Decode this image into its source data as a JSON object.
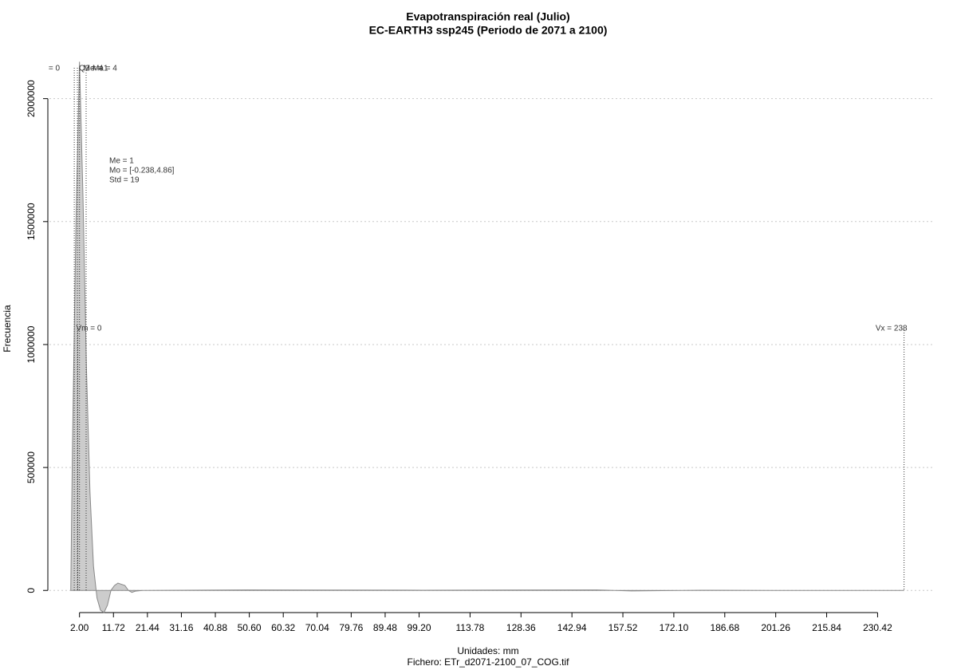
{
  "chart_data": {
    "type": "area",
    "title": "Evapotranspiración real (Julio)",
    "subtitle": "EC-EARTH3 ssp245 (Periodo de 2071 a 2100)",
    "x_label": "Unidades: mm",
    "caption": "Fichero: ETr_d2071-2100_07_COG.tif",
    "y_label": "Frecuencia",
    "x": [
      -0.5,
      0,
      1,
      2,
      3,
      4,
      5,
      6,
      7,
      8,
      9,
      10,
      11,
      12,
      13,
      15,
      16,
      17,
      18,
      20,
      50,
      100,
      150,
      160,
      180,
      200,
      238
    ],
    "series": [
      {
        "color": "#cccccc",
        "values": [
          0,
          600000,
          1500000,
          2150000,
          1600000,
          900000,
          400000,
          100000,
          -30000,
          -80000,
          -90000,
          -60000,
          0,
          20000,
          30000,
          20000,
          0,
          -8000,
          -3000,
          0,
          2000,
          1000,
          2000,
          -2000,
          1000,
          0,
          0
        ]
      }
    ],
    "xlim": [
      -6.6,
      246.3
    ],
    "ylim": [
      -90000,
      2200000
    ],
    "xticks": [
      {
        "value": 2.0,
        "label": "2.00"
      },
      {
        "value": 11.72,
        "label": "11.72"
      },
      {
        "value": 21.44,
        "label": "21.44"
      },
      {
        "value": 31.16,
        "label": "31.16"
      },
      {
        "value": 40.88,
        "label": "40.88"
      },
      {
        "value": 50.6,
        "label": "50.60"
      },
      {
        "value": 60.32,
        "label": "60.32"
      },
      {
        "value": 70.04,
        "label": "70.04"
      },
      {
        "value": 79.76,
        "label": "79.76"
      },
      {
        "value": 89.48,
        "label": "89.48"
      },
      {
        "value": 99.2,
        "label": "99.20"
      },
      113.78,
      128.36,
      142.94,
      157.52,
      {
        "value": 172.1,
        "label": "172.10"
      },
      186.68,
      201.26,
      215.84,
      230.42
    ],
    "yticks": [
      0,
      500000,
      1000000,
      1500000,
      2000000
    ],
    "grid": true,
    "markers": [
      {
        "x": 0.5,
        "label": "= 0"
      },
      {
        "x": 1.4,
        "label": "Q3 = 4"
      },
      {
        "x": 2,
        "label": "Me = 1"
      },
      {
        "x": 3.9,
        "label": "Ma = 4"
      }
    ],
    "range_markers": [
      {
        "x": 1.5,
        "label": "Vm = 0"
      },
      {
        "x": 238,
        "label": "Vx = 238"
      }
    ],
    "stats": [
      "Me = 1",
      "Mo = [-0.238,4.86]",
      "Std = 19"
    ]
  }
}
